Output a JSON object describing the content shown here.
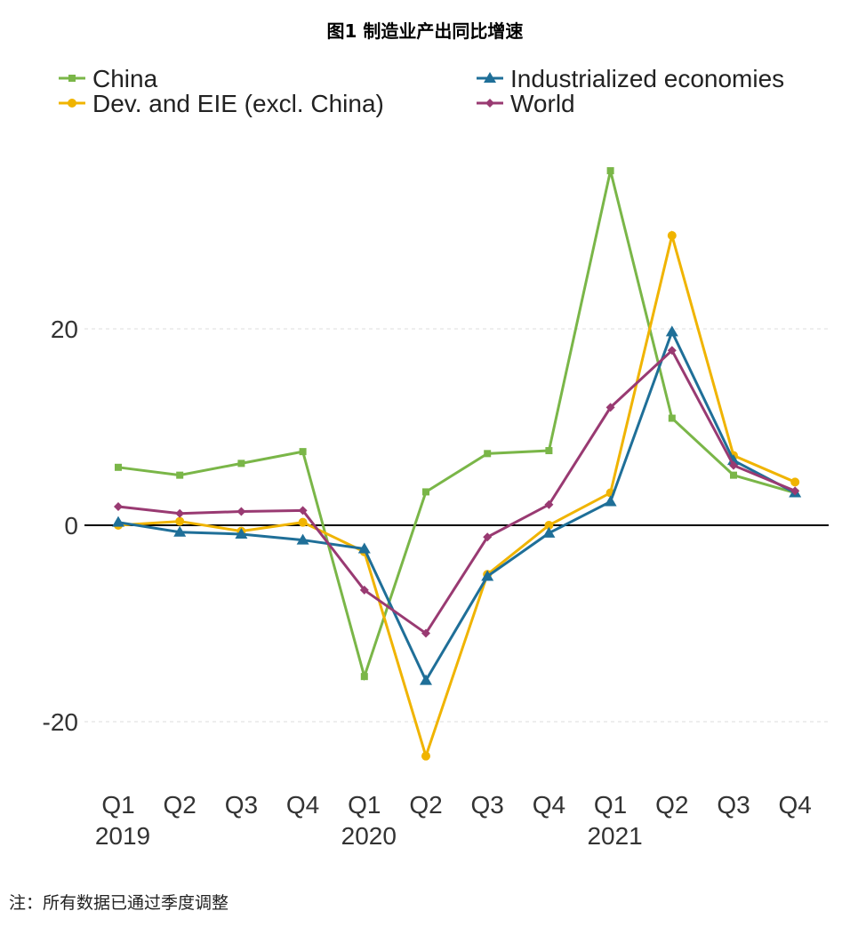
{
  "chart_data": {
    "type": "line",
    "title": "图1 制造业产出同比增速",
    "note": "注：所有数据已通过季度调整",
    "x": [
      "Q1",
      "Q2",
      "Q3",
      "Q4",
      "Q1",
      "Q2",
      "Q3",
      "Q4",
      "Q1",
      "Q2",
      "Q3",
      "Q4"
    ],
    "year_labels": [
      {
        "index": 0,
        "label": "2019"
      },
      {
        "index": 4,
        "label": "2020"
      },
      {
        "index": 8,
        "label": "2021"
      }
    ],
    "ylim": [
      -27,
      41
    ],
    "yticks": [
      -20,
      0,
      20
    ],
    "grid": "horizontal dashed",
    "legend": "top",
    "series": [
      {
        "name": "China",
        "color": "#7ab648",
        "marker": "square",
        "values": [
          5.9,
          5.1,
          6.3,
          7.5,
          -15.4,
          3.4,
          7.3,
          7.6,
          36.1,
          10.9,
          5.1,
          3.3
        ]
      },
      {
        "name": "Dev. and EIE (excl. China)",
        "color": "#f0b400",
        "marker": "circle",
        "values": [
          0,
          0.4,
          -0.6,
          0.3,
          -2.7,
          -23.5,
          -5.0,
          0,
          3.3,
          29.5,
          7.1,
          4.4
        ]
      },
      {
        "name": "Industrialized economies",
        "color": "#1f6f98",
        "marker": "triangle",
        "values": [
          0.3,
          -0.7,
          -0.9,
          -1.5,
          -2.4,
          -15.8,
          -5.2,
          -0.8,
          2.4,
          19.7,
          6.6,
          3.3
        ]
      },
      {
        "name": "World",
        "color": "#993a72",
        "marker": "diamond",
        "values": [
          1.9,
          1.2,
          1.4,
          1.5,
          -6.6,
          -11.0,
          -1.2,
          2.1,
          12.0,
          17.8,
          6.1,
          3.5
        ]
      }
    ]
  }
}
